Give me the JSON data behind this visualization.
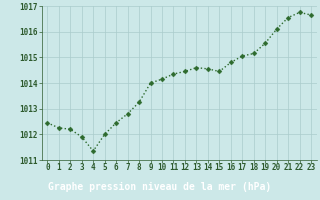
{
  "x": [
    0,
    1,
    2,
    3,
    4,
    5,
    6,
    7,
    8,
    9,
    10,
    11,
    12,
    13,
    14,
    15,
    16,
    17,
    18,
    19,
    20,
    21,
    22,
    23
  ],
  "y": [
    1012.45,
    1012.25,
    1012.2,
    1011.9,
    1011.35,
    1012.0,
    1012.45,
    1012.8,
    1013.25,
    1014.0,
    1014.15,
    1014.35,
    1014.45,
    1014.6,
    1014.55,
    1014.45,
    1014.8,
    1015.05,
    1015.15,
    1015.55,
    1016.1,
    1016.55,
    1016.75,
    1016.65
  ],
  "line_color": "#2d6a2d",
  "marker_color": "#2d6a2d",
  "bg_color": "#cce8e8",
  "plot_bg_color": "#cce8e8",
  "footer_bg_color": "#336633",
  "grid_color": "#aacccc",
  "xlabel": "Graphe pression niveau de la mer (hPa)",
  "xlabel_color": "#ffffff",
  "tick_color": "#2d5a2d",
  "ylim": [
    1011,
    1017
  ],
  "ytick_vals": [
    1011,
    1012,
    1013,
    1014,
    1015,
    1016,
    1017
  ],
  "xtick_vals": [
    0,
    1,
    2,
    3,
    4,
    5,
    6,
    7,
    8,
    9,
    10,
    11,
    12,
    13,
    14,
    15,
    16,
    17,
    18,
    19,
    20,
    21,
    22,
    23
  ],
  "marker_size": 2.5,
  "line_width": 1.0,
  "font_size_xlabel": 7.0,
  "font_size_ticks": 5.5
}
